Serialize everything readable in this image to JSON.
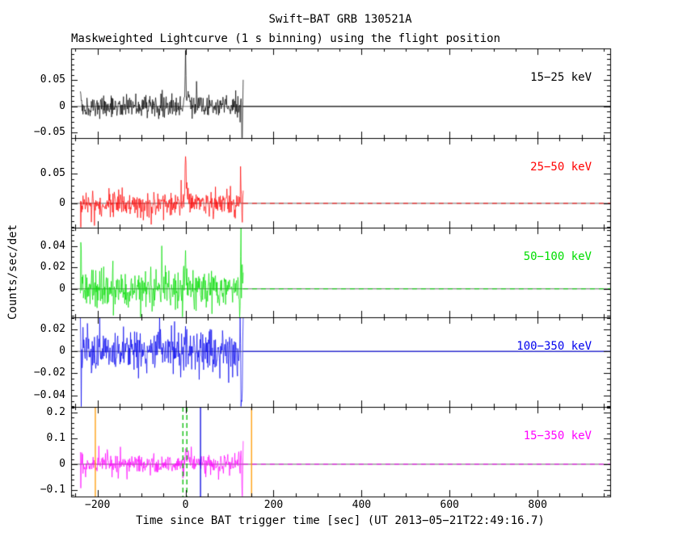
{
  "figure": {
    "title": "Swift−BAT GRB 130521A",
    "subtitle": "Maskweighted Lightcurve (1 s binning) using the flight position",
    "ylabel": "Counts/sec/det",
    "xlabel": "Time since BAT trigger time [sec] (UT 2013−05−21T22:49:16.7)",
    "background_color": "#ffffff",
    "axis_color": "#000000"
  },
  "chart_data": {
    "type": "line",
    "title": "Swift−BAT GRB 130521A",
    "xlabel": "Time since BAT trigger time [sec] (UT 2013−05−21T22:49:16.7)",
    "ylabel": "Counts/sec/det",
    "binning_sec": 1,
    "x_range": [
      -260,
      965
    ],
    "x_minor_step": 50,
    "data_start": -239,
    "data_end": 131,
    "x_major_ticks": [
      {
        "value": -200,
        "label": "−200"
      },
      {
        "value": 0,
        "label": "0"
      },
      {
        "value": 200,
        "label": "200"
      },
      {
        "value": 400,
        "label": "400"
      },
      {
        "value": 600,
        "label": "600"
      },
      {
        "value": 800,
        "label": "800"
      }
    ],
    "panels": [
      {
        "label": "15−25 keV",
        "color": "#000000",
        "ylim": [
          -0.06,
          0.11
        ],
        "yticks": [
          {
            "value": 0.05,
            "label": "0.05"
          },
          {
            "value": 0,
            "label": "0"
          },
          {
            "value": -0.05,
            "label": "−0.05"
          }
        ],
        "ytick_minor_step": 0.01,
        "noise_sigma": 0.01,
        "zero_line": "solid",
        "spikes": [
          {
            "t": 0,
            "amp": 0.092,
            "width": 1.3
          },
          {
            "t": 3,
            "amp": 0.02,
            "width": 6
          },
          {
            "t": 126,
            "amp": 0.038,
            "width": 1.2
          },
          {
            "t": 128,
            "amp": -0.05,
            "width": 1.2
          }
        ]
      },
      {
        "label": "25−50 keV",
        "color": "#ff0000",
        "ylim": [
          -0.041,
          0.11
        ],
        "yticks": [
          {
            "value": 0.05,
            "label": "0.05"
          },
          {
            "value": 0,
            "label": "0"
          }
        ],
        "ytick_minor_step": 0.01,
        "noise_sigma": 0.01,
        "zero_line": "dashed",
        "spikes": [
          {
            "t": 0,
            "amp": 0.082,
            "width": 1.3
          },
          {
            "t": 3,
            "amp": 0.018,
            "width": 5
          },
          {
            "t": 125,
            "amp": 0.05,
            "width": 1.2
          },
          {
            "t": 128,
            "amp": -0.028,
            "width": 1.2
          }
        ]
      },
      {
        "label": "50−100 keV",
        "color": "#00dd00",
        "ylim": [
          -0.0265,
          0.057
        ],
        "yticks": [
          {
            "value": 0.04,
            "label": "0.04"
          },
          {
            "value": 0.02,
            "label": "0.02"
          },
          {
            "value": 0,
            "label": "0"
          }
        ],
        "ytick_minor_step": 0.005,
        "noise_sigma": 0.0095,
        "zero_line": "dashed",
        "spikes": [
          {
            "t": 0,
            "amp": 0.027,
            "width": 1.6
          },
          {
            "t": 126,
            "amp": 0.054,
            "width": 1.2
          },
          {
            "t": 123,
            "amp": -0.02,
            "width": 1.2
          }
        ]
      },
      {
        "label": "100−350 keV",
        "color": "#0000ee",
        "ylim": [
          -0.0505,
          0.031
        ],
        "yticks": [
          {
            "value": 0.02,
            "label": "0.02"
          },
          {
            "value": 0,
            "label": "0"
          },
          {
            "value": -0.02,
            "label": "−0.02"
          },
          {
            "value": -0.04,
            "label": "−0.04"
          }
        ],
        "ytick_minor_step": 0.005,
        "noise_sigma": 0.0095,
        "zero_line": "solid",
        "spikes": [
          {
            "t": 0,
            "amp": 0.013,
            "width": 2
          },
          {
            "t": 124,
            "amp": 0.024,
            "width": 1.2
          },
          {
            "t": 127,
            "amp": -0.046,
            "width": 1.2
          }
        ]
      },
      {
        "label": "15−350 keV",
        "color": "#ff00ff",
        "ylim": [
          -0.125,
          0.222
        ],
        "yticks": [
          {
            "value": 0.2,
            "label": "0.2"
          },
          {
            "value": 0.1,
            "label": "0.1"
          },
          {
            "value": 0,
            "label": "0"
          },
          {
            "value": -0.1,
            "label": "−0.1"
          }
        ],
        "ytick_minor_step": 0.02,
        "noise_sigma": 0.018,
        "zero_line": "dashed",
        "spikes": [
          {
            "t": 0,
            "amp": 0.058,
            "width": 1.5
          },
          {
            "t": 3,
            "amp": 0.025,
            "width": 5
          },
          {
            "t": 126,
            "amp": 0.068,
            "width": 1.2
          },
          {
            "t": 129,
            "amp": -0.055,
            "width": 1.2
          }
        ],
        "event_lines": [
          {
            "t": -205,
            "color": "#ff9900",
            "style": "solid"
          },
          {
            "t": -6,
            "color": "#00bb00",
            "style": "dashed"
          },
          {
            "t": 3,
            "color": "#00bb00",
            "style": "dashed"
          },
          {
            "t": 34,
            "color": "#0000dd",
            "style": "solid"
          },
          {
            "t": 150,
            "color": "#ff9900",
            "style": "solid"
          }
        ]
      }
    ]
  }
}
